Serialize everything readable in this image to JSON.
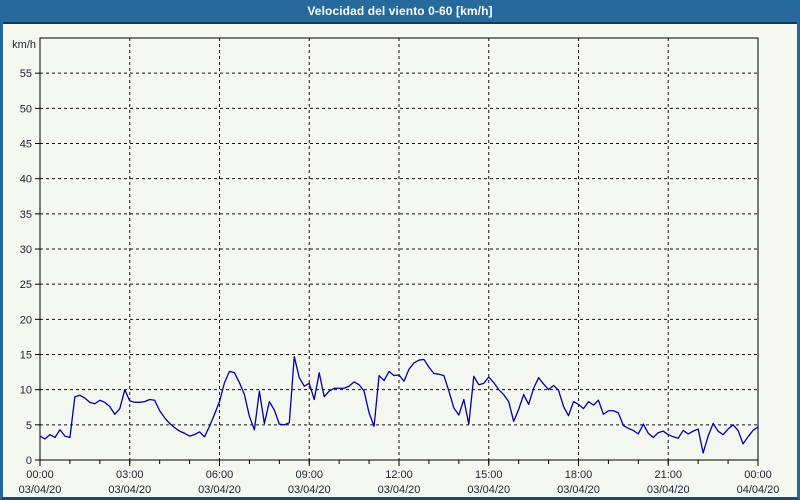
{
  "window": {
    "title": "Velocidad del viento 0-60 [km/h]"
  },
  "colors": {
    "titlebar_bg": "#26699c",
    "window_border": "#26699c",
    "window_border_bottom": "#1a4a75",
    "page_bg": "#f5f7f1",
    "line_color": "#0000a8",
    "axis_color": "#000000",
    "grid_color": "#111111",
    "tick_text_color": "#1b2433",
    "title_text_color": "#ffffff"
  },
  "chart_data": {
    "type": "line",
    "title": "Velocidad del viento 0-60 [km/h]",
    "ylabel": "km/h",
    "xlabel": "",
    "ylim": [
      0,
      60
    ],
    "ytick_step": 5,
    "yticks": [
      0,
      5,
      10,
      15,
      20,
      25,
      30,
      35,
      40,
      45,
      50,
      55
    ],
    "grid": true,
    "legend_position": "none",
    "x_range_hours": 24,
    "sample_interval_minutes": 10,
    "minor_xtick_interval_hours": 1,
    "xtick_times": [
      "00:00",
      "03:00",
      "06:00",
      "09:00",
      "12:00",
      "15:00",
      "18:00",
      "21:00",
      "00:00"
    ],
    "xtick_dates": [
      "03/04/20",
      "03/04/20",
      "03/04/20",
      "03/04/20",
      "03/04/20",
      "03/04/20",
      "03/04/20",
      "03/04/20",
      "04/04/20"
    ],
    "series": [
      {
        "name": "Velocidad del viento",
        "color": "#0000a8",
        "values": [
          3.4,
          3.0,
          3.6,
          3.2,
          4.3,
          3.4,
          3.2,
          9.0,
          9.2,
          8.8,
          8.2,
          8.0,
          8.5,
          8.2,
          7.6,
          6.5,
          7.3,
          10.0,
          8.4,
          8.2,
          8.2,
          8.3,
          8.6,
          8.5,
          7.0,
          6.0,
          5.2,
          4.6,
          4.1,
          3.8,
          3.4,
          3.6,
          4.0,
          3.3,
          4.8,
          6.5,
          8.3,
          11.0,
          12.6,
          12.4,
          11.0,
          9.3,
          6.2,
          4.3,
          9.8,
          5.2,
          8.3,
          7.1,
          5.1,
          5.0,
          5.3,
          14.7,
          11.7,
          10.5,
          10.9,
          8.6,
          12.4,
          9.0,
          9.8,
          10.2,
          10.2,
          10.2,
          10.5,
          11.1,
          10.7,
          9.8,
          6.7,
          4.8,
          12.0,
          11.3,
          12.6,
          12.0,
          12.1,
          11.2,
          12.9,
          13.8,
          14.2,
          14.3,
          13.2,
          12.3,
          12.2,
          12.0,
          9.8,
          7.4,
          6.4,
          8.6,
          5.1,
          11.9,
          10.7,
          10.9,
          11.8,
          11.0,
          10.0,
          9.3,
          8.3,
          5.5,
          7.2,
          9.3,
          7.9,
          10.2,
          11.7,
          10.8,
          10.0,
          10.6,
          9.9,
          7.6,
          6.3,
          8.3,
          7.9,
          7.3,
          8.3,
          7.8,
          8.5,
          6.5,
          7.0,
          7.0,
          6.7,
          4.9,
          4.5,
          4.2,
          3.7,
          5.1,
          3.8,
          3.2,
          3.9,
          4.1,
          3.6,
          3.3,
          3.1,
          4.2,
          3.7,
          4.1,
          4.4,
          1.0,
          3.4,
          5.2,
          4.1,
          3.6,
          4.4,
          5.0,
          4.2,
          2.3,
          3.3,
          4.2,
          4.7
        ]
      }
    ]
  }
}
